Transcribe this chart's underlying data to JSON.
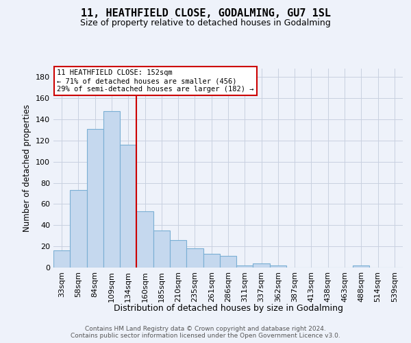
{
  "title": "11, HEATHFIELD CLOSE, GODALMING, GU7 1SL",
  "subtitle": "Size of property relative to detached houses in Godalming",
  "xlabel": "Distribution of detached houses by size in Godalming",
  "ylabel": "Number of detached properties",
  "categories": [
    "33sqm",
    "58sqm",
    "84sqm",
    "109sqm",
    "134sqm",
    "160sqm",
    "185sqm",
    "210sqm",
    "235sqm",
    "261sqm",
    "286sqm",
    "311sqm",
    "337sqm",
    "362sqm",
    "387sqm",
    "413sqm",
    "438sqm",
    "463sqm",
    "488sqm",
    "514sqm",
    "539sqm"
  ],
  "values": [
    16,
    73,
    131,
    148,
    116,
    53,
    35,
    26,
    18,
    13,
    11,
    2,
    4,
    2,
    0,
    0,
    0,
    0,
    2,
    0,
    0
  ],
  "bar_color": "#c5d8ee",
  "bar_edgecolor": "#7aafd4",
  "ylim": [
    0,
    188
  ],
  "yticks": [
    0,
    20,
    40,
    60,
    80,
    100,
    120,
    140,
    160,
    180
  ],
  "vline_x": 4.5,
  "vline_color": "#cc0000",
  "annotation_line1": "11 HEATHFIELD CLOSE: 152sqm",
  "annotation_line2": "← 71% of detached houses are smaller (456)",
  "annotation_line3": "29% of semi-detached houses are larger (182) →",
  "footer1": "Contains HM Land Registry data © Crown copyright and database right 2024.",
  "footer2": "Contains public sector information licensed under the Open Government Licence v3.0.",
  "background_color": "#eef2fa",
  "grid_color": "#c8d0e0",
  "title_fontsize": 11,
  "subtitle_fontsize": 9,
  "ylabel_fontsize": 8.5,
  "xlabel_fontsize": 9,
  "tick_fontsize": 8,
  "xtick_fontsize": 7,
  "footer_fontsize": 6.5
}
